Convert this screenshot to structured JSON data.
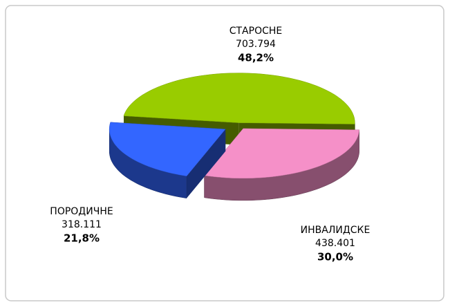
{
  "chart_data": {
    "type": "pie3d",
    "categories": [
      "СТАРОСНЕ",
      "ИНВАЛИДСКЕ",
      "ПОРОДИЧНЕ"
    ],
    "values": [
      703794,
      438401,
      318111
    ],
    "value_labels": [
      "703.794",
      "438.401",
      "318.111"
    ],
    "percentages": [
      48.2,
      30.0,
      21.8
    ],
    "percent_labels": [
      "48,2%",
      "30,0%",
      "21,8%"
    ],
    "colors": [
      "#99cc00",
      "#f590c8",
      "#3366ff"
    ]
  }
}
